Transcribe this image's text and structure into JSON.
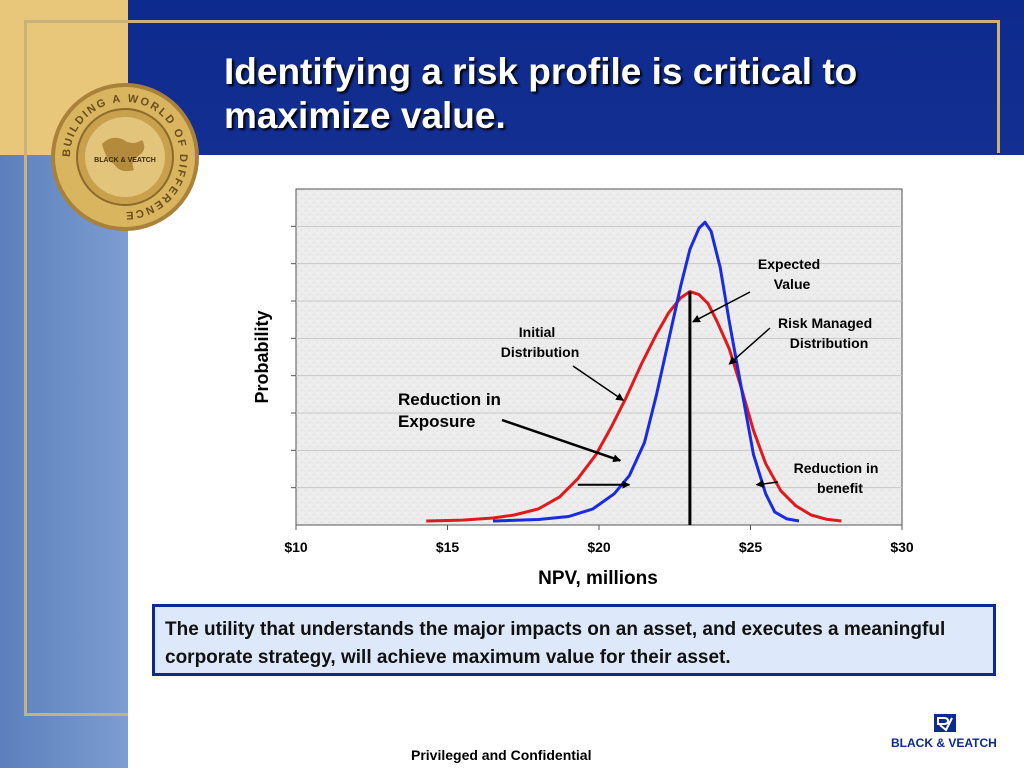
{
  "slide": {
    "title": "Identifying a risk profile is critical to maximize value.",
    "note": "The utility that understands the major impacts on an asset, and executes a meaningful corporate strategy, will achieve maximum value for their asset.",
    "footer": "Privileged and Confidential",
    "brand": "BLACK & VEATCH",
    "logo": {
      "ring_text": "BUILDING A WORLD OF DIFFERENCE",
      "center_text": "BLACK & VEATCH",
      "icon": "globe-seal-icon"
    },
    "brand_icon": "bv-mark-icon"
  },
  "colors": {
    "top_band": "#0d2a8e",
    "left_band": "#6f91c9",
    "gold": "#e9c77a",
    "initial_curve": "#e0191d",
    "managed_curve": "#1a2be0",
    "box_fill": "#dde9fb"
  },
  "chart_data": {
    "type": "line",
    "title": "",
    "xlabel": "NPV, millions",
    "ylabel": "Probability",
    "xlim": [
      10,
      30
    ],
    "ylim": [
      0,
      1
    ],
    "x_ticks": [
      10,
      15,
      20,
      25,
      30
    ],
    "x_tick_labels": [
      "$10",
      "$15",
      "$20",
      "$25",
      "$30"
    ],
    "y_tick_count": 8,
    "y_tick_labels_visible": false,
    "grid": true,
    "legend": "none",
    "series": [
      {
        "key": "initial",
        "color": "#e0191d",
        "x": [
          14.3,
          15.5,
          16.5,
          17.2,
          18.0,
          18.7,
          19.3,
          19.9,
          20.4,
          20.9,
          21.4,
          21.9,
          22.3,
          22.7,
          23.0,
          23.3,
          23.6,
          23.9,
          24.3,
          24.7,
          25.1,
          25.5,
          26.0,
          26.5,
          27.0,
          27.5,
          28.0
        ],
        "y": [
          0.0,
          0.003,
          0.01,
          0.02,
          0.04,
          0.08,
          0.14,
          0.22,
          0.31,
          0.41,
          0.52,
          0.62,
          0.69,
          0.74,
          0.76,
          0.75,
          0.72,
          0.66,
          0.57,
          0.44,
          0.3,
          0.19,
          0.1,
          0.05,
          0.02,
          0.006,
          0.0
        ]
      },
      {
        "key": "managed",
        "color": "#1a2be0",
        "x": [
          16.5,
          18.0,
          19.0,
          19.8,
          20.5,
          21.0,
          21.5,
          21.9,
          22.3,
          22.7,
          23.0,
          23.3,
          23.5,
          23.7,
          24.0,
          24.3,
          24.7,
          25.1,
          25.5,
          25.8,
          26.2,
          26.6
        ],
        "y": [
          0.0,
          0.005,
          0.015,
          0.04,
          0.09,
          0.15,
          0.26,
          0.42,
          0.6,
          0.78,
          0.9,
          0.97,
          0.99,
          0.96,
          0.84,
          0.66,
          0.44,
          0.22,
          0.09,
          0.03,
          0.007,
          0.0
        ]
      }
    ],
    "expected_value_line": {
      "x": 23.0,
      "y_top": 0.76
    },
    "annotations": [
      {
        "key": "expected",
        "text": [
          "Expected",
          "Value"
        ],
        "arrow_to": [
          23.1,
          0.66
        ]
      },
      {
        "key": "risk_managed",
        "text": [
          "Risk Managed",
          "Distribution"
        ],
        "arrow_to": [
          24.3,
          0.52
        ]
      },
      {
        "key": "initial",
        "text": [
          "Initial",
          "Distribution"
        ],
        "arrow_to": [
          20.8,
          0.4
        ]
      },
      {
        "key": "reduction_exposure",
        "text": [
          "Reduction in",
          "Exposure"
        ],
        "arrow_to": [
          20.7,
          0.2
        ]
      },
      {
        "key": "reduction_benefit",
        "text": [
          "Reduction in",
          "benefit"
        ],
        "arrow_to": [
          25.2,
          0.12
        ]
      }
    ],
    "exposure_marker": {
      "x_from": 19.3,
      "x_to": 21.0,
      "y": 0.12
    }
  }
}
